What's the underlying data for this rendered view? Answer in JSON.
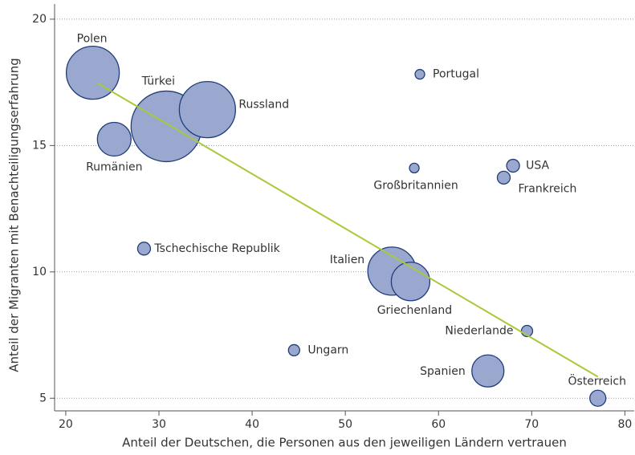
{
  "chart_data": {
    "type": "scatter",
    "x_label": "Anteil der Deutschen, die Personen aus den jeweiligen Ländern vertrauen",
    "y_label": "Anteil der Migranten mit Benachteiligungserfahrung",
    "labels": [
      "Polen",
      "Türkei",
      "Russland",
      "Rumänien",
      "Portugal",
      "Großbritannien",
      "USA",
      "Frankreich",
      "Tschechische Republik",
      "Italien",
      "Griechenland",
      "Niederlande",
      "Ungarn",
      "Spanien",
      "Österreich"
    ],
    "x": [
      22.9,
      30.8,
      35.2,
      25.2,
      58.0,
      57.4,
      68.0,
      67.0,
      28.4,
      55.0,
      57.0,
      69.5,
      44.5,
      65.3,
      77.1
    ],
    "y": [
      17.88,
      15.76,
      16.42,
      15.25,
      17.82,
      14.11,
      14.2,
      13.73,
      10.92,
      10.03,
      9.62,
      7.66,
      6.9,
      6.08,
      5.0
    ],
    "sizes": [
      33,
      44,
      35,
      21,
      6,
      6,
      8,
      8,
      8,
      30,
      24,
      7,
      7,
      20,
      10
    ],
    "color": "#9aa8cf",
    "edge_color": "#1f3d7a",
    "trendline": {
      "x": [
        23.4,
        77.1
      ],
      "y": [
        17.47,
        5.85
      ],
      "color": "#a8c93a"
    },
    "xlim": [
      18.8,
      81
    ],
    "ylim": [
      4.5,
      20.6
    ],
    "xticks": [
      20,
      30,
      40,
      50,
      60,
      70,
      80
    ],
    "yticks": [
      5,
      10,
      15,
      20
    ],
    "grid": true
  }
}
